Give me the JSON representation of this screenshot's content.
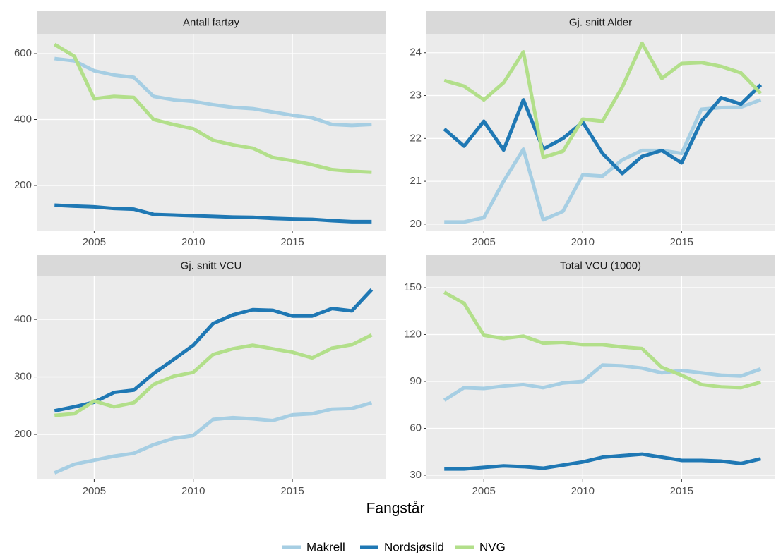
{
  "chart_data": {
    "type": "line",
    "xlabel": "Fangstår",
    "x": [
      2003,
      2004,
      2005,
      2006,
      2007,
      2008,
      2009,
      2010,
      2011,
      2012,
      2013,
      2014,
      2015,
      2016,
      2017,
      2018,
      2019
    ],
    "xlim": [
      2002.1,
      2019.7
    ],
    "xticks": [
      2005,
      2010,
      2015
    ],
    "grid": true,
    "legend": "bottom",
    "series": [
      {
        "name": "Makrell",
        "color": "#a6cee3"
      },
      {
        "name": "Nordsjøsild",
        "color": "#1f78b4"
      },
      {
        "name": "NVG",
        "color": "#b2df8a"
      }
    ],
    "panels": [
      {
        "title": "Antall fartøy",
        "ylim": [
          63,
          660
        ],
        "yticks": [
          200,
          400,
          600
        ],
        "values": [
          [
            585,
            578,
            548,
            535,
            528,
            470,
            460,
            455,
            445,
            437,
            433,
            423,
            413,
            405,
            385,
            382,
            385
          ],
          [
            140,
            137,
            135,
            130,
            128,
            112,
            110,
            108,
            106,
            104,
            103,
            100,
            98,
            97,
            93,
            90,
            90
          ],
          [
            628,
            592,
            463,
            470,
            467,
            400,
            385,
            372,
            337,
            323,
            313,
            285,
            275,
            263,
            248,
            243,
            240
          ]
        ]
      },
      {
        "title": "Gj. snitt Alder",
        "ylim": [
          19.85,
          24.44
        ],
        "yticks": [
          20,
          21,
          22,
          23,
          24
        ],
        "values": [
          [
            20.05,
            20.05,
            20.15,
            21.0,
            21.75,
            20.1,
            20.3,
            21.15,
            21.12,
            21.5,
            21.72,
            21.72,
            21.65,
            22.68,
            22.72,
            22.73,
            22.9
          ],
          [
            22.22,
            21.82,
            22.4,
            21.73,
            22.9,
            21.75,
            22.0,
            22.38,
            21.65,
            21.18,
            21.58,
            21.72,
            21.43,
            22.4,
            22.95,
            22.8,
            23.25
          ],
          [
            23.35,
            23.22,
            22.9,
            23.3,
            24.02,
            21.56,
            21.7,
            22.45,
            22.4,
            23.2,
            24.22,
            23.4,
            23.75,
            23.77,
            23.68,
            23.53,
            23.05
          ]
        ]
      },
      {
        "title": "Gj. snitt VCU",
        "ylim": [
          121.5,
          475
        ],
        "yticks": [
          200,
          300,
          400
        ],
        "values": [
          [
            133,
            148,
            155,
            162,
            167,
            182,
            193,
            198,
            226,
            229,
            227,
            224,
            234,
            236,
            244,
            245,
            255
          ],
          [
            241,
            248,
            256,
            273,
            277,
            306,
            330,
            355,
            393,
            408,
            417,
            416,
            406,
            406,
            419,
            415,
            452
          ],
          [
            233,
            236,
            258,
            248,
            255,
            287,
            301,
            308,
            339,
            349,
            355,
            349,
            343,
            333,
            350,
            356,
            373
          ]
        ]
      },
      {
        "title": "Total VCU (1000)",
        "ylim": [
          27.3,
          157.2
        ],
        "yticks": [
          30,
          60,
          90,
          120,
          150
        ],
        "values": [
          [
            78,
            86,
            85.5,
            87,
            88,
            86,
            89,
            90,
            100.5,
            100,
            98.5,
            95.5,
            97,
            95.5,
            94,
            93.5,
            98
          ],
          [
            34,
            34,
            35,
            36,
            35.5,
            34.5,
            36.5,
            38.5,
            41.5,
            42.5,
            43.5,
            41.5,
            39.5,
            39.5,
            39,
            37.5,
            40.5
          ],
          [
            147,
            140,
            119.5,
            117.5,
            119,
            114.5,
            115,
            113.5,
            113.5,
            112,
            111,
            99,
            94,
            88,
            86.5,
            86,
            89.5
          ]
        ]
      }
    ]
  }
}
